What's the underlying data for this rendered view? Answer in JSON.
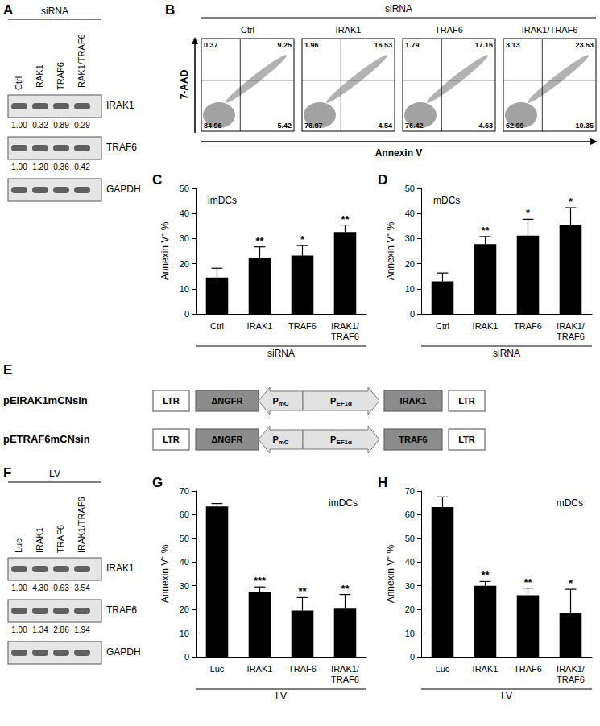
{
  "panels": {
    "A": {
      "label": "A",
      "header": "siRNA",
      "lanes": [
        "Ctrl",
        "IRAK1",
        "TRAF6",
        "IRAK1/TRAF6"
      ],
      "rows": [
        {
          "protein": "IRAK1",
          "quant": [
            "1.00",
            "0.32",
            "0.89",
            "0.29"
          ]
        },
        {
          "protein": "TRAF6",
          "quant": [
            "1.00",
            "1.20",
            "0.36",
            "0.42"
          ]
        },
        {
          "protein": "GAPDH"
        }
      ]
    },
    "B": {
      "label": "B",
      "header": "siRNA",
      "x_axis": "Annexin V",
      "y_axis": "7-AAD",
      "plots": [
        {
          "title": "Ctrl",
          "quadrants": {
            "upper_left": "0.37",
            "upper_right": "9.25",
            "lower_left": "84.96",
            "lower_right": "5.42"
          }
        },
        {
          "title": "IRAK1",
          "quadrants": {
            "upper_left": "1.96",
            "upper_right": "16.53",
            "lower_left": "76.97",
            "lower_right": "4.54"
          }
        },
        {
          "title": "TRAF6",
          "quadrants": {
            "upper_left": "1.79",
            "upper_right": "17.16",
            "lower_left": "76.42",
            "lower_right": "4.63"
          }
        },
        {
          "title": "IRAK1/TRAF6",
          "quadrants": {
            "upper_left": "3.13",
            "upper_right": "23.53",
            "lower_left": "62.99",
            "lower_right": "10.35"
          }
        }
      ]
    },
    "E": {
      "label": "E",
      "constructs": [
        {
          "name": "pEIRAK1mCNsin",
          "elements": [
            {
              "text": "LTR"
            },
            {
              "text": "ΔNGFR"
            },
            {
              "text": "P",
              "sub": "mC",
              "arrow": "left"
            },
            {
              "text": "P",
              "sub": "EF1α",
              "arrow": "right"
            },
            {
              "text": "IRAK1"
            },
            {
              "text": "LTR"
            }
          ]
        },
        {
          "name": "pETRAF6mCNsin",
          "elements": [
            {
              "text": "LTR"
            },
            {
              "text": "ΔNGFR"
            },
            {
              "text": "P",
              "sub": "mC",
              "arrow": "left"
            },
            {
              "text": "P",
              "sub": "EF1α",
              "arrow": "right"
            },
            {
              "text": "TRAF6"
            },
            {
              "text": "LTR"
            }
          ]
        }
      ]
    },
    "F": {
      "label": "F",
      "header": "LV",
      "lanes": [
        "Luc",
        "IRAK1",
        "TRAF6",
        "IRAK1/TRAF6"
      ],
      "rows": [
        {
          "protein": "IRAK1",
          "quant": [
            "1.00",
            "4.30",
            "0.63",
            "3.54"
          ]
        },
        {
          "protein": "TRAF6",
          "quant": [
            "1.00",
            "1.34",
            "2.86",
            "1.94"
          ]
        },
        {
          "protein": "GAPDH"
        }
      ]
    }
  },
  "chart_data": [
    {
      "panel": "C",
      "type": "bar",
      "title": "imDCs",
      "ylabel": "Annexin V⁺ %",
      "xlabel": "siRNA",
      "categories": [
        "Ctrl",
        "IRAK1",
        "TRAF6",
        "IRAK1/TRAF6"
      ],
      "values": [
        14.5,
        22.2,
        23.2,
        32.6
      ],
      "errors": [
        3.7,
        4.5,
        4.0,
        2.8
      ],
      "annotations": [
        null,
        "**",
        "*",
        "**"
      ],
      "color": "#000000",
      "ylim": [
        0,
        50
      ],
      "yticks": [
        0,
        10,
        20,
        30,
        40,
        50
      ],
      "grid": false
    },
    {
      "panel": "D",
      "type": "bar",
      "title": "mDCs",
      "ylabel": "Annexin V⁺ %",
      "xlabel": "siRNA",
      "categories": [
        "Ctrl",
        "IRAK1",
        "TRAF6",
        "IRAK1/TRAF6"
      ],
      "values": [
        13.0,
        27.8,
        31.2,
        35.5
      ],
      "errors": [
        3.3,
        3.0,
        6.5,
        6.8
      ],
      "annotations": [
        null,
        "**",
        "*",
        "*"
      ],
      "color": "#000000",
      "ylim": [
        0,
        50
      ],
      "yticks": [
        0,
        10,
        20,
        30,
        40,
        50
      ],
      "grid": false
    },
    {
      "panel": "G",
      "type": "bar",
      "title": "imDCs",
      "ylabel": "Annexin V⁺ %",
      "xlabel": "LV",
      "categories": [
        "Luc",
        "IRAK1",
        "TRAF6",
        "IRAK1/TRAF6"
      ],
      "values": [
        63.5,
        27.5,
        19.5,
        20.3
      ],
      "errors": [
        1.2,
        2.0,
        5.5,
        6.0
      ],
      "annotations": [
        null,
        "***",
        "**",
        "**"
      ],
      "color": "#000000",
      "ylim": [
        0,
        70
      ],
      "yticks": [
        0,
        10,
        20,
        30,
        40,
        50,
        60,
        70
      ],
      "grid": false
    },
    {
      "panel": "H",
      "type": "bar",
      "title": "mDCs",
      "ylabel": "Annexin V⁺ %",
      "xlabel": "LV",
      "categories": [
        "Luc",
        "IRAK1",
        "TRAF6",
        "IRAK1/TRAF6"
      ],
      "values": [
        63.2,
        30.0,
        26.0,
        18.5
      ],
      "errors": [
        4.3,
        1.8,
        3.0,
        10.0
      ],
      "annotations": [
        null,
        "**",
        "**",
        "*"
      ],
      "color": "#000000",
      "ylim": [
        0,
        70
      ],
      "yticks": [
        0,
        10,
        20,
        30,
        40,
        50,
        60,
        70
      ],
      "grid": false
    }
  ]
}
